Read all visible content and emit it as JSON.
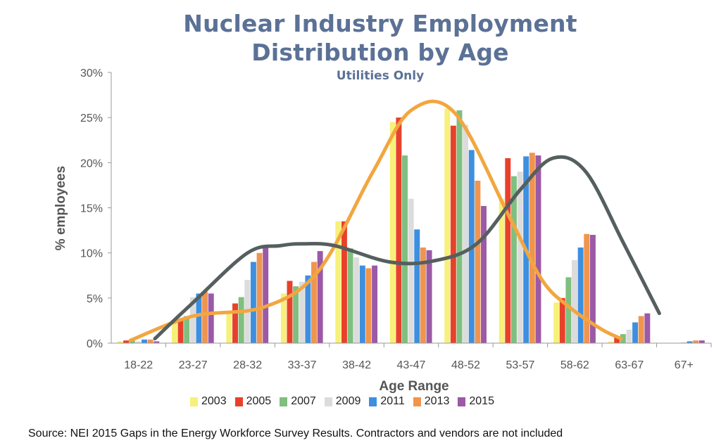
{
  "chart_data": {
    "type": "bar",
    "title_line1": "Nuclear Industry Employment",
    "title_line2": "Distribution by Age",
    "subtitle": "Utilities Only",
    "xlabel": "Age Range",
    "ylabel": "% employees",
    "ylim": [
      0,
      30
    ],
    "yticks": [
      "0%",
      "5%",
      "10%",
      "15%",
      "20%",
      "25%",
      "30%"
    ],
    "categories": [
      "18-22",
      "23-27",
      "28-32",
      "33-37",
      "38-42",
      "43-47",
      "48-52",
      "53-57",
      "58-62",
      "63-67",
      "67+"
    ],
    "series": [
      {
        "name": "2003",
        "color": "#f7f07a",
        "values": [
          0.2,
          2.5,
          3.5,
          5.5,
          13.5,
          24.5,
          26.0,
          16.0,
          4.5,
          0.2,
          0.0
        ]
      },
      {
        "name": "2005",
        "color": "#e8412b",
        "values": [
          0.3,
          2.5,
          4.4,
          6.9,
          13.5,
          25.0,
          24.1,
          20.5,
          5.0,
          0.6,
          0.0
        ]
      },
      {
        "name": "2007",
        "color": "#7fbf7f",
        "values": [
          0.3,
          3.0,
          5.1,
          6.3,
          10.5,
          20.8,
          25.8,
          18.5,
          7.3,
          1.0,
          0.0
        ]
      },
      {
        "name": "2009",
        "color": "#dcdcdc",
        "values": [
          0.2,
          5.1,
          7.0,
          6.8,
          9.5,
          16.0,
          24.2,
          19.0,
          9.2,
          1.5,
          0.1
        ]
      },
      {
        "name": "2011",
        "color": "#3d8fe0",
        "values": [
          0.4,
          5.5,
          9.0,
          7.5,
          8.6,
          12.6,
          21.4,
          20.7,
          10.6,
          2.3,
          0.2
        ]
      },
      {
        "name": "2013",
        "color": "#f0954e",
        "values": [
          0.4,
          5.7,
          10.0,
          9.0,
          8.3,
          10.6,
          18.0,
          21.1,
          12.1,
          3.0,
          0.3
        ]
      },
      {
        "name": "2015",
        "color": "#9b59a6",
        "values": [
          0.2,
          5.5,
          10.7,
          10.2,
          8.6,
          10.3,
          15.2,
          20.8,
          12.0,
          3.3,
          0.3
        ]
      }
    ],
    "trend_lines": [
      {
        "color": "#f2a640",
        "x": [
          -0.15,
          1.0,
          2.3,
          3.3,
          4.3,
          5.0,
          5.8,
          6.8,
          7.4,
          7.9,
          8.5,
          8.85
        ],
        "y": [
          0.3,
          3.0,
          4.0,
          8.0,
          19.0,
          25.8,
          25.5,
          14.0,
          7.0,
          4.0,
          1.5,
          0.5
        ]
      },
      {
        "color": "#555f5f",
        "x": [
          0.3,
          1.0,
          2.0,
          2.6,
          3.0,
          3.6,
          4.6,
          5.4,
          6.2,
          7.0,
          7.6,
          8.2,
          8.9,
          9.55
        ],
        "y": [
          0.5,
          4.5,
          10.0,
          10.8,
          11.0,
          10.8,
          9.0,
          9.1,
          11.0,
          17.0,
          20.5,
          19.0,
          11.0,
          3.3
        ]
      }
    ],
    "legend_position": "bottom",
    "grid": false
  },
  "source_note": "Source: NEI 2015 Gaps in the Energy Workforce Survey Results. Contractors and vendors are not included"
}
